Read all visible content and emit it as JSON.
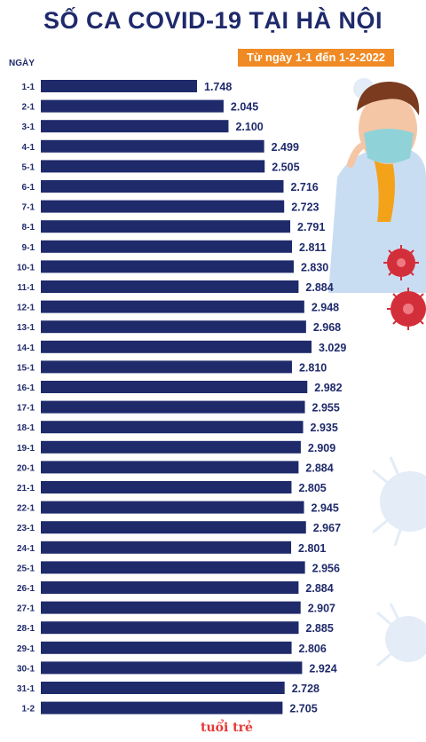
{
  "header": {
    "title": "SỐ CA COVID-19 TẠI HÀ NỘI",
    "subtitle": "Từ ngày 1-1 đến 1-2-2022",
    "axis_label": "NGÀY"
  },
  "footer": {
    "logo_text": "tuổi trẻ"
  },
  "colors": {
    "bar": "#1f2a6b",
    "title": "#1f2a6b",
    "badge": "#f08a24",
    "virus": "#d32f3a",
    "virus_light": "#e3ecf7"
  },
  "chart_data": {
    "type": "bar",
    "orientation": "horizontal",
    "title": "SỐ CA COVID-19 TẠI HÀ NỘI",
    "subtitle": "Từ ngày 1-1 đến 1-2-2022",
    "xlabel": "",
    "ylabel": "NGÀY",
    "grid": false,
    "categories": [
      "1-1",
      "2-1",
      "3-1",
      "4-1",
      "5-1",
      "6-1",
      "7-1",
      "8-1",
      "9-1",
      "10-1",
      "11-1",
      "12-1",
      "13-1",
      "14-1",
      "15-1",
      "16-1",
      "17-1",
      "18-1",
      "19-1",
      "20-1",
      "21-1",
      "22-1",
      "23-1",
      "24-1",
      "25-1",
      "26-1",
      "27-1",
      "28-1",
      "29-1",
      "30-1",
      "31-1",
      "1-2"
    ],
    "values": [
      1748,
      2045,
      2100,
      2499,
      2505,
      2716,
      2723,
      2791,
      2811,
      2830,
      2884,
      2948,
      2968,
      3029,
      2810,
      2982,
      2955,
      2935,
      2909,
      2884,
      2805,
      2945,
      2967,
      2801,
      2956,
      2884,
      2907,
      2885,
      2806,
      2924,
      2728,
      2705
    ],
    "value_labels": [
      "1.748",
      "2.045",
      "2.100",
      "2.499",
      "2.505",
      "2.716",
      "2.723",
      "2.791",
      "2.811",
      "2.830",
      "2.884",
      "2.948",
      "2.968",
      "3.029",
      "2.810",
      "2.982",
      "2.955",
      "2.935",
      "2.909",
      "2.884",
      "2.805",
      "2.945",
      "2.967",
      "2.801",
      "2.956",
      "2.884",
      "2.907",
      "2.885",
      "2.806",
      "2.924",
      "2.728",
      "2.705"
    ]
  }
}
